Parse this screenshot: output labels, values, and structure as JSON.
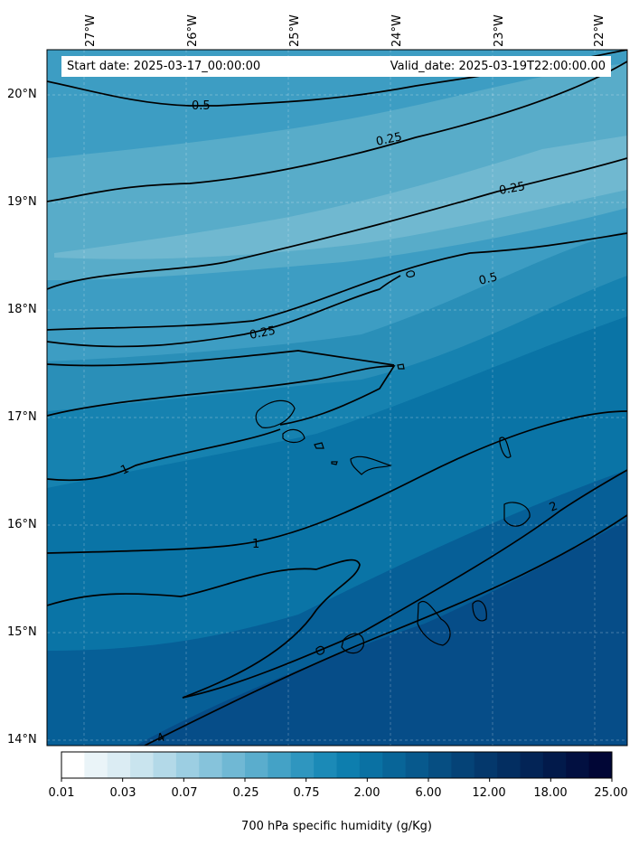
{
  "map": {
    "start_date_text": "Start date: 2025-03-17_00:00:00",
    "valid_date_text": "Valid_date: 2025-03-19T22:00:00.00",
    "longitude_labels": [
      "27°W",
      "26°W",
      "25°W",
      "24°W",
      "23°W",
      "22°W"
    ],
    "latitude_labels": [
      "20°N",
      "19°N",
      "18°N",
      "17°N",
      "16°N",
      "15°N",
      "14°N"
    ],
    "contour_labels": [
      "0.5",
      "0.25",
      "0.25",
      "0.25",
      "0.5",
      "1",
      "1",
      "2",
      "4"
    ],
    "region": "Cabo Verde islands",
    "field_colors": [
      "#3d9dc3",
      "#58acc9",
      "#70b8d0",
      "#2a8fb8",
      "#1682b0",
      "#0a74a6",
      "#065f97",
      "#064d88"
    ]
  },
  "colorbar": {
    "tick_labels": [
      "0.01",
      "0.03",
      "0.07",
      "0.25",
      "0.75",
      "2.00",
      "6.00",
      "12.00",
      "18.00",
      "25.00"
    ],
    "title": "700 hPa specific humidity (g/Kg)",
    "colors": [
      "#ffffff",
      "#eaf4f8",
      "#dbecf3",
      "#c9e4ee",
      "#b3d9e8",
      "#9ccee2",
      "#86c3db",
      "#70b8d4",
      "#5aadcd",
      "#44a2c6",
      "#2f96bf",
      "#1b8ab7",
      "#0d7eae",
      "#0a71a3",
      "#086598",
      "#07598d",
      "#064e82",
      "#054377",
      "#04386c",
      "#032e61",
      "#032456",
      "#021a4b",
      "#021041",
      "#010636"
    ]
  }
}
